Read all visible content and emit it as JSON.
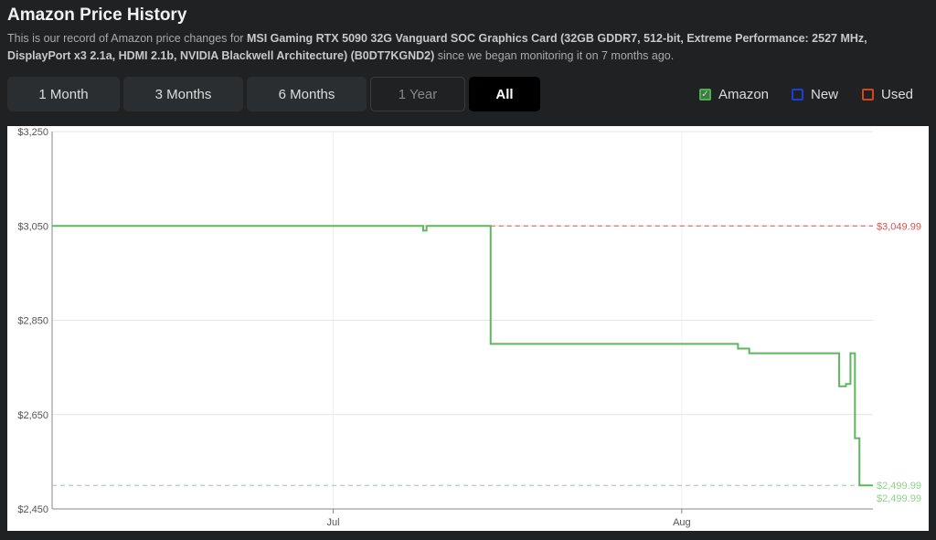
{
  "header": {
    "title": "Amazon Price History",
    "desc_pre": "This is our record of Amazon price changes for ",
    "product": "MSI Gaming RTX 5090 32G Vanguard SOC Graphics Card (32GB GDDR7, 512-bit, Extreme Performance: 2527 MHz, DisplayPort x3 2.1a, HDMI 2.1b, NVIDIA Blackwell Architecture) (B0DT7KGND2)",
    "desc_post": " since we began monitoring it on 7 months ago."
  },
  "ranges": [
    {
      "label": "1 Month",
      "state": "normal"
    },
    {
      "label": "3 Months",
      "state": "normal"
    },
    {
      "label": "6 Months",
      "state": "normal"
    },
    {
      "label": "1 Year",
      "state": "disabled"
    },
    {
      "label": "All",
      "state": "active"
    }
  ],
  "legend": [
    {
      "label": "Amazon",
      "color": "#4caf50",
      "checked": true
    },
    {
      "label": "New",
      "color": "#1a3fd6",
      "checked": false
    },
    {
      "label": "Used",
      "color": "#d2461e",
      "checked": false
    }
  ],
  "chart_data": {
    "type": "line",
    "ylim": [
      2450,
      3250
    ],
    "yticks": [
      "$3,250",
      "$3,050",
      "$2,850",
      "$2,650",
      "$2,450"
    ],
    "ytick_values": [
      3250,
      3050,
      2850,
      2650,
      2450
    ],
    "xticks": [
      {
        "label": "Jul",
        "date": "2025-07-01"
      },
      {
        "label": "Aug",
        "date": "2025-08-01"
      }
    ],
    "xlim": [
      "2025-06-06",
      "2025-08-18"
    ],
    "grid": true,
    "series": [
      {
        "name": "Amazon",
        "color": "#5cb85c",
        "step": true,
        "points": [
          [
            "2025-06-06",
            3049.99
          ],
          [
            "2025-07-09",
            3039.99
          ],
          [
            "2025-07-09.3",
            3049.99
          ],
          [
            "2025-07-15",
            2799.99
          ],
          [
            "2025-08-06",
            2789.99
          ],
          [
            "2025-08-07",
            2779.99
          ],
          [
            "2025-08-15",
            2709.99
          ],
          [
            "2025-08-15.6",
            2714.99
          ],
          [
            "2025-08-16",
            2779.99
          ],
          [
            "2025-08-16.4",
            2599.99
          ],
          [
            "2025-08-16.8",
            2499.99
          ],
          [
            "2025-08-18",
            2499.99
          ]
        ]
      }
    ],
    "reference_lines": [
      {
        "label": "$3,049.99",
        "value": 3049.99,
        "color": "#d9534f",
        "dashed": true,
        "from": "2025-07-15"
      },
      {
        "label": "$2,499.99",
        "value": 2499.99,
        "color": "#8fd08f",
        "dashed": true
      }
    ],
    "extra_labels": [
      {
        "label": "$2,499.99",
        "color": "#8fd08f"
      }
    ]
  }
}
